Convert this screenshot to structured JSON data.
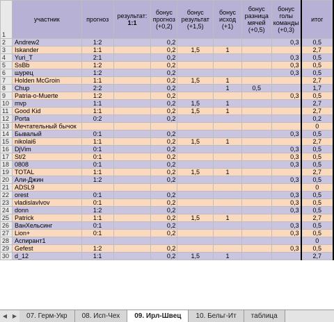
{
  "headers": {
    "participant": "участник",
    "forecast": "прогноз",
    "result_label": "результат:",
    "result_value": "1:1",
    "bonus_forecast": "бонус прогноз (+0,2)",
    "bonus_result": "бонус результат (+1,5)",
    "bonus_outcome": "бонус исход (+1)",
    "bonus_diff": "бонус разница мячей (+0,5)",
    "bonus_goals": "бонус голы команды (+0,3)",
    "total": "итог"
  },
  "rows": [
    {
      "n": "2",
      "name": "Andrew2",
      "f": "1:2",
      "bf": "0,2",
      "br": "",
      "bo": "",
      "bd": "",
      "bg": "0,3",
      "t": "0,5"
    },
    {
      "n": "3",
      "name": "Iskander",
      "f": "1:1",
      "bf": "0,2",
      "br": "1,5",
      "bo": "1",
      "bd": "",
      "bg": "",
      "t": "2,7"
    },
    {
      "n": "4",
      "name": "Yuri_T",
      "f": "2:1",
      "bf": "0,2",
      "br": "",
      "bo": "",
      "bd": "",
      "bg": "0,3",
      "t": "0,5"
    },
    {
      "n": "5",
      "name": "SsBb",
      "f": "1:2",
      "bf": "0,2",
      "br": "",
      "bo": "",
      "bd": "",
      "bg": "0,3",
      "t": "0,5"
    },
    {
      "n": "6",
      "name": "шурец",
      "f": "1:2",
      "bf": "0,2",
      "br": "",
      "bo": "",
      "bd": "",
      "bg": "0,3",
      "t": "0,5"
    },
    {
      "n": "7",
      "name": "Holden McGroin",
      "f": "1:1",
      "bf": "0,2",
      "br": "1,5",
      "bo": "1",
      "bd": "",
      "bg": "",
      "t": "2,7"
    },
    {
      "n": "8",
      "name": "Chup",
      "f": "2:2",
      "bf": "0,2",
      "br": "",
      "bo": "1",
      "bd": "0,5",
      "bg": "",
      "t": "1,7"
    },
    {
      "n": "9",
      "name": "Patria-o-Muerte",
      "f": "1:2",
      "bf": "0,2",
      "br": "",
      "bo": "",
      "bd": "",
      "bg": "0,3",
      "t": "0,5"
    },
    {
      "n": "10",
      "name": "mvp",
      "f": "1:1",
      "bf": "0,2",
      "br": "1,5",
      "bo": "1",
      "bd": "",
      "bg": "",
      "t": "2,7"
    },
    {
      "n": "11",
      "name": "Good Kid",
      "f": "1:1",
      "bf": "0,2",
      "br": "1,5",
      "bo": "1",
      "bd": "",
      "bg": "",
      "t": "2,7"
    },
    {
      "n": "12",
      "name": "Porta",
      "f": "0:2",
      "bf": "0,2",
      "br": "",
      "bo": "",
      "bd": "",
      "bg": "",
      "t": "0,2"
    },
    {
      "n": "13",
      "name": "Мечтательный бычок",
      "f": "",
      "bf": "",
      "br": "",
      "bo": "",
      "bd": "",
      "bg": "",
      "t": "0"
    },
    {
      "n": "14",
      "name": "Бывалый",
      "f": "0:1",
      "bf": "0,2",
      "br": "",
      "bo": "",
      "bd": "",
      "bg": "0,3",
      "t": "0,5"
    },
    {
      "n": "15",
      "name": "nikolai6",
      "f": "1:1",
      "bf": "0,2",
      "br": "1,5",
      "bo": "1",
      "bd": "",
      "bg": "",
      "t": "2,7"
    },
    {
      "n": "16",
      "name": "DjVim",
      "f": "0:1",
      "bf": "0,2",
      "br": "",
      "bo": "",
      "bd": "",
      "bg": "0,3",
      "t": "0,5"
    },
    {
      "n": "17",
      "name": "St/2",
      "f": "0:1",
      "bf": "0,2",
      "br": "",
      "bo": "",
      "bd": "",
      "bg": "0,3",
      "t": "0,5"
    },
    {
      "n": "18",
      "name": "0808",
      "f": "0:1",
      "bf": "0,2",
      "br": "",
      "bo": "",
      "bd": "",
      "bg": "0,3",
      "t": "0,5"
    },
    {
      "n": "19",
      "name": "TOTAL",
      "f": "1:1",
      "bf": "0,2",
      "br": "1,5",
      "bo": "1",
      "bd": "",
      "bg": "",
      "t": "2,7"
    },
    {
      "n": "20",
      "name": "Али-Джин",
      "f": "1:2",
      "bf": "0,2",
      "br": "",
      "bo": "",
      "bd": "",
      "bg": "0,3",
      "t": "0,5"
    },
    {
      "n": "21",
      "name": "ADSL9",
      "f": "",
      "bf": "",
      "br": "",
      "bo": "",
      "bd": "",
      "bg": "",
      "t": "0"
    },
    {
      "n": "22",
      "name": "orest",
      "f": "0:1",
      "bf": "0,2",
      "br": "",
      "bo": "",
      "bd": "",
      "bg": "0,3",
      "t": "0,5"
    },
    {
      "n": "23",
      "name": "vladislavlvov",
      "f": "0:1",
      "bf": "0,2",
      "br": "",
      "bo": "",
      "bd": "",
      "bg": "0,3",
      "t": "0,5"
    },
    {
      "n": "24",
      "name": "donn",
      "f": "1:2",
      "bf": "0,2",
      "br": "",
      "bo": "",
      "bd": "",
      "bg": "0,3",
      "t": "0,5"
    },
    {
      "n": "25",
      "name": "Patrick",
      "f": "1:1",
      "bf": "0,2",
      "br": "1,5",
      "bo": "1",
      "bd": "",
      "bg": "",
      "t": "2,7"
    },
    {
      "n": "26",
      "name": "ВанХельсинг",
      "f": "0:1",
      "bf": "0,2",
      "br": "",
      "bo": "",
      "bd": "",
      "bg": "0,3",
      "t": "0,5"
    },
    {
      "n": "27",
      "name": "Lion+",
      "f": "0:1",
      "bf": "0,2",
      "br": "",
      "bo": "",
      "bd": "",
      "bg": "0,3",
      "t": "0,5"
    },
    {
      "n": "28",
      "name": "Аспирант1",
      "f": "",
      "bf": "",
      "br": "",
      "bo": "",
      "bd": "",
      "bg": "",
      "t": "0"
    },
    {
      "n": "29",
      "name": "Gefest",
      "f": "1:2",
      "bf": "0,2",
      "br": "",
      "bo": "",
      "bd": "",
      "bg": "0,3",
      "t": "0,5"
    },
    {
      "n": "30",
      "name": "d_12",
      "f": "1:1",
      "bf": "0,2",
      "br": "1,5",
      "bo": "1",
      "bd": "",
      "bg": "",
      "t": "2,7"
    }
  ],
  "tabs": {
    "nav_first": "◀",
    "nav_last": "▶",
    "items": [
      "07. Герм-Укр",
      "08. Исп-Чех",
      "09. Ирл-Швец",
      "10. Бельг-Ит",
      "таблица"
    ],
    "active_index": 2
  },
  "colors": {
    "header": "#b8b1d6",
    "row_odd": "#c9c4e0",
    "row_even": "#fad9bf"
  }
}
